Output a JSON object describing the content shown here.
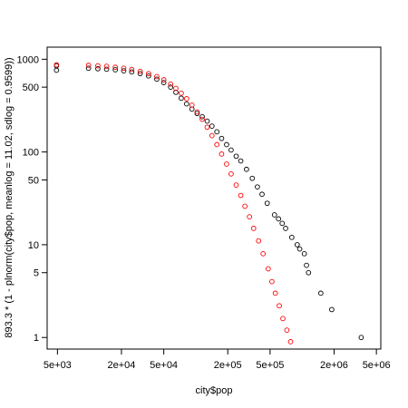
{
  "chart_data": {
    "type": "scatter",
    "title": "",
    "xlabel": "city$pop",
    "ylabel": "893.3 * (1 - plnorm(city$pop, meanlog = 11.02, sdlog = 0.9599))",
    "x_scale": "log",
    "y_scale": "log",
    "xlim": [
      4000,
      5500000
    ],
    "ylim": [
      0.75,
      1350
    ],
    "x_ticks": [
      5000,
      20000,
      50000,
      200000,
      500000,
      2000000,
      5000000
    ],
    "x_tick_labels": [
      "5e+03",
      "2e+04",
      "5e+04",
      "2e+05",
      "5e+05",
      "2e+06",
      "5e+06"
    ],
    "y_ticks": [
      1,
      5,
      10,
      50,
      100,
      500,
      1000
    ],
    "y_tick_labels": [
      "1",
      "5",
      "10",
      "50",
      "100",
      "500",
      "1000"
    ],
    "grid": false,
    "legend": "none",
    "marker": "open-circle",
    "series": [
      {
        "color": "#000000",
        "points": [
          [
            4900,
            850
          ],
          [
            4900,
            760
          ],
          [
            9800,
            800
          ],
          [
            12000,
            790
          ],
          [
            14500,
            780
          ],
          [
            17500,
            770
          ],
          [
            21000,
            750
          ],
          [
            25000,
            730
          ],
          [
            30000,
            700
          ],
          [
            36000,
            660
          ],
          [
            43000,
            610
          ],
          [
            50000,
            560
          ],
          [
            58000,
            500
          ],
          [
            65000,
            440
          ],
          [
            73000,
            380
          ],
          [
            82000,
            330
          ],
          [
            92000,
            290
          ],
          [
            103000,
            260
          ],
          [
            115000,
            240
          ],
          [
            128000,
            215
          ],
          [
            142000,
            190
          ],
          [
            158000,
            165
          ],
          [
            175000,
            140
          ],
          [
            195000,
            120
          ],
          [
            215000,
            105
          ],
          [
            240000,
            90
          ],
          [
            265000,
            80
          ],
          [
            300000,
            65
          ],
          [
            340000,
            52
          ],
          [
            380000,
            42
          ],
          [
            420000,
            35
          ],
          [
            470000,
            28
          ],
          [
            550000,
            21
          ],
          [
            600000,
            19
          ],
          [
            650000,
            17
          ],
          [
            700000,
            15
          ],
          [
            800000,
            12
          ],
          [
            900000,
            10
          ],
          [
            950000,
            9
          ],
          [
            1050000,
            8
          ],
          [
            1100000,
            6
          ],
          [
            1150000,
            5
          ],
          [
            1500000,
            3
          ],
          [
            1900000,
            2
          ],
          [
            3600000,
            1
          ]
        ]
      },
      {
        "color": "#ff0000",
        "points": [
          [
            4900,
            870
          ],
          [
            9800,
            860
          ],
          [
            12000,
            850
          ],
          [
            14500,
            840
          ],
          [
            17500,
            820
          ],
          [
            21000,
            800
          ],
          [
            25000,
            775
          ],
          [
            30000,
            740
          ],
          [
            36000,
            700
          ],
          [
            43000,
            650
          ],
          [
            50000,
            600
          ],
          [
            58000,
            540
          ],
          [
            65000,
            485
          ],
          [
            73000,
            430
          ],
          [
            82000,
            375
          ],
          [
            92000,
            320
          ],
          [
            103000,
            270
          ],
          [
            115000,
            225
          ],
          [
            128000,
            185
          ],
          [
            142000,
            150
          ],
          [
            158000,
            120
          ],
          [
            175000,
            95
          ],
          [
            195000,
            74
          ],
          [
            215000,
            58
          ],
          [
            240000,
            44
          ],
          [
            265000,
            34
          ],
          [
            290000,
            26
          ],
          [
            320000,
            20
          ],
          [
            350000,
            15
          ],
          [
            390000,
            11
          ],
          [
            430000,
            8
          ],
          [
            480000,
            5.5
          ],
          [
            520000,
            4
          ],
          [
            560000,
            3
          ],
          [
            610000,
            2.2
          ],
          [
            660000,
            1.6
          ],
          [
            720000,
            1.2
          ],
          [
            780000,
            0.9
          ]
        ]
      }
    ]
  }
}
